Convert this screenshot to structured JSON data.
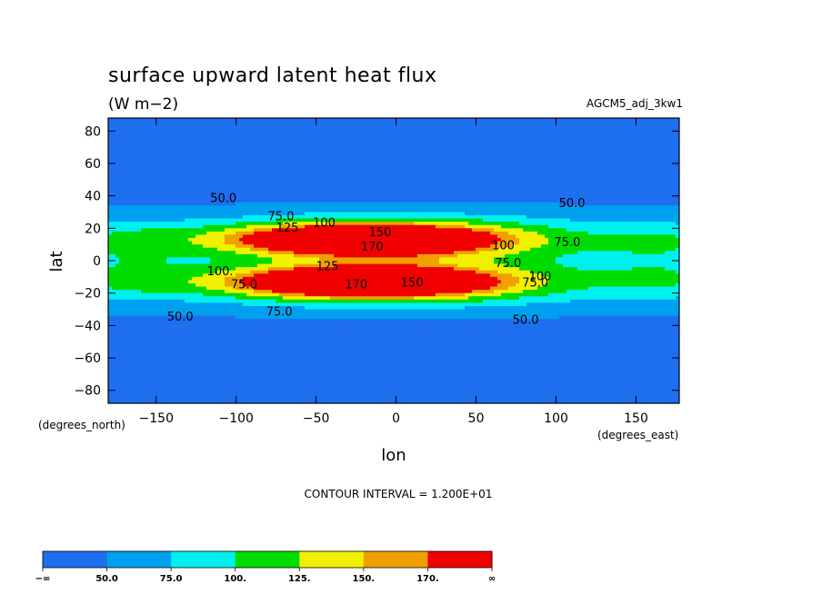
{
  "chart_data": {
    "type": "heatmap",
    "title": "surface upward latent heat flux",
    "units": "(W m−2)",
    "run_label": "AGCM5_adj_3kw1",
    "xlabel": "lon",
    "ylabel": "lat",
    "x_units_note": "(degrees_east)",
    "y_units_note": "(degrees_north)",
    "xlim": [
      -180,
      177
    ],
    "ylim": [
      -88,
      88
    ],
    "xticks": [
      -150,
      -100,
      -50,
      0,
      50,
      100,
      150
    ],
    "xtick_labels": [
      "−150",
      "−100",
      "−50",
      "0",
      "50",
      "100",
      "150"
    ],
    "yticks": [
      80,
      60,
      40,
      20,
      0,
      -20,
      -40,
      -60,
      -80
    ],
    "ytick_labels": [
      "80",
      "60",
      "40",
      "20",
      "0",
      "−20",
      "−40",
      "−60",
      "−80"
    ],
    "contour_interval_text": "CONTOUR INTERVAL = 1.200E+01",
    "levels": [
      50,
      75,
      100,
      125,
      150,
      170
    ],
    "level_labels": [
      "−∞",
      "50.0",
      "75.0",
      "100.",
      "125.",
      "150.",
      "170.",
      "∞"
    ],
    "colors": [
      "#1e6ef0",
      "#00a0f0",
      "#00f0f0",
      "#00dc00",
      "#f0f000",
      "#f0a000",
      "#f00000"
    ],
    "contour_labels": [
      {
        "text": "50.0",
        "lon": -108,
        "lat": 38
      },
      {
        "text": "50.0",
        "lon": 110,
        "lat": 35
      },
      {
        "text": "75.0",
        "lon": -72,
        "lat": 27
      },
      {
        "text": "125",
        "lon": -68,
        "lat": 20
      },
      {
        "text": "100",
        "lon": -45,
        "lat": 23
      },
      {
        "text": "150",
        "lon": -10,
        "lat": 17
      },
      {
        "text": "170",
        "lon": -15,
        "lat": 8
      },
      {
        "text": "100",
        "lon": 67,
        "lat": 9
      },
      {
        "text": "75.0",
        "lon": 107,
        "lat": 11
      },
      {
        "text": "125",
        "lon": -43,
        "lat": -4
      },
      {
        "text": "75.0",
        "lon": 70,
        "lat": -2
      },
      {
        "text": "100.",
        "lon": -110,
        "lat": -7
      },
      {
        "text": "75.0",
        "lon": -95,
        "lat": -15
      },
      {
        "text": "150",
        "lon": 10,
        "lat": -14
      },
      {
        "text": "170",
        "lon": -25,
        "lat": -15
      },
      {
        "text": "100",
        "lon": 90,
        "lat": -10
      },
      {
        "text": "75.0",
        "lon": 87,
        "lat": -14
      },
      {
        "text": "50.0",
        "lon": -135,
        "lat": -35
      },
      {
        "text": "75.0",
        "lon": -73,
        "lat": -32
      },
      {
        "text": "50.0",
        "lon": 81,
        "lat": -37
      }
    ]
  }
}
